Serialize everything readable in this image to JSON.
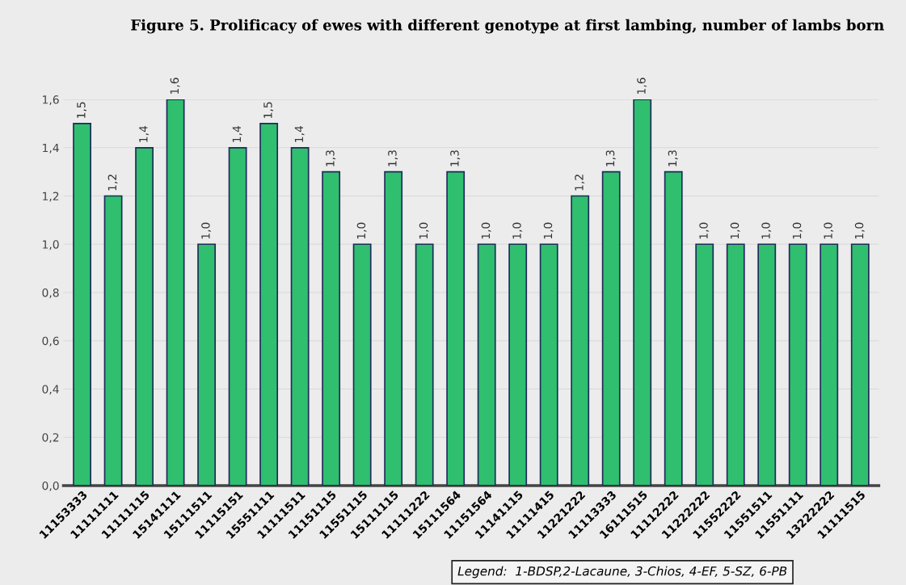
{
  "chart_data": {
    "type": "bar",
    "title": "Figure 5. Prolificacy of ewes with different genotype at first lambing, number of lambs born",
    "categories": [
      "11153333",
      "11111111",
      "11111115",
      "15141111",
      "15111511",
      "11115151",
      "15551111",
      "11111511",
      "11151115",
      "11551115",
      "15111115",
      "11111222",
      "15111564",
      "11151564",
      "11141115",
      "11111415",
      "11221222",
      "11113333",
      "16111515",
      "11112222",
      "11222222",
      "11552222",
      "11551511",
      "11551111",
      "13222222",
      "11111515"
    ],
    "values": [
      1.5,
      1.2,
      1.4,
      1.6,
      1.0,
      1.4,
      1.5,
      1.4,
      1.3,
      1.0,
      1.3,
      1.0,
      1.3,
      1.0,
      1.0,
      1.0,
      1.2,
      1.3,
      1.6,
      1.3,
      1.0,
      1.0,
      1.0,
      1.0,
      1.0,
      1.0
    ],
    "value_labels": [
      "1,5",
      "1,2",
      "1,4",
      "1,6",
      "1,0",
      "1,4",
      "1,5",
      "1,4",
      "1,3",
      "1,0",
      "1,3",
      "1,0",
      "1,3",
      "1,0",
      "1,0",
      "1,0",
      "1,2",
      "1,3",
      "1,6",
      "1,3",
      "1,0",
      "1,0",
      "1,0",
      "1,0",
      "1,0",
      "1,0"
    ],
    "color": "#2fbf6f",
    "ylim": [
      0,
      1.6
    ],
    "yticks": [
      {
        "value": 0,
        "label": "0,0"
      },
      {
        "value": 0.2,
        "label": "0,2"
      },
      {
        "value": 0.4,
        "label": "0,4"
      },
      {
        "value": 0.6,
        "label": "0,6"
      },
      {
        "value": 0.8,
        "label": "0,8"
      },
      {
        "value": 1.0,
        "label": "1,0"
      },
      {
        "value": 1.2,
        "label": "1,2"
      },
      {
        "value": 1.4,
        "label": "1,4"
      },
      {
        "value": 1.6,
        "label": "1,6"
      }
    ],
    "grid": "y",
    "annotations": [
      "Legend:  1-BDSP,2-Lacaune, 3-Chios, 4-EF, 5-SZ, 6-PB"
    ]
  }
}
